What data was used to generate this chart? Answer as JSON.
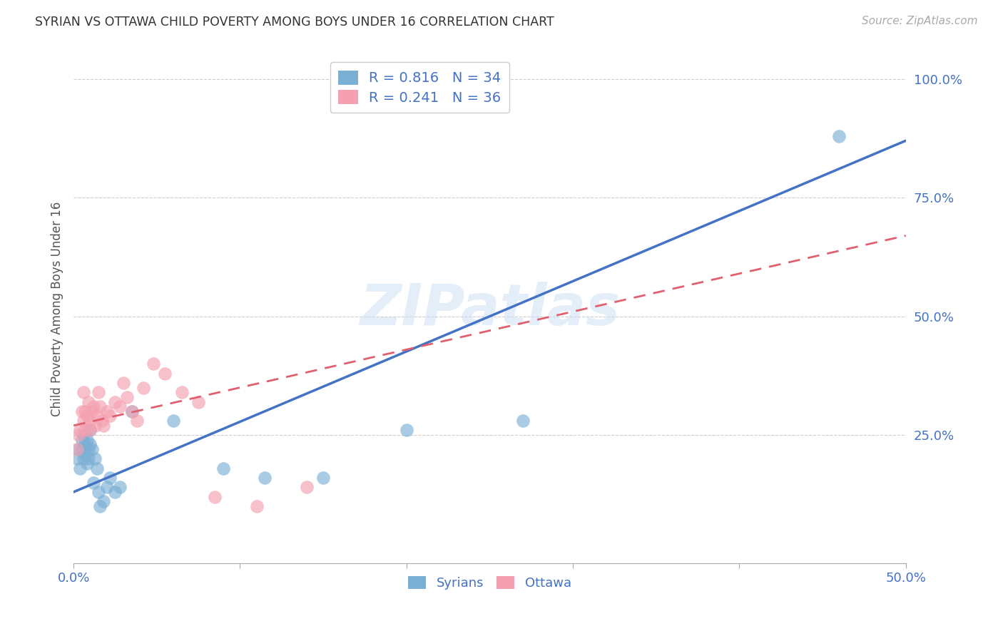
{
  "title": "SYRIAN VS OTTAWA CHILD POVERTY AMONG BOYS UNDER 16 CORRELATION CHART",
  "source": "Source: ZipAtlas.com",
  "ylabel": "Child Poverty Among Boys Under 16",
  "xlim": [
    0.0,
    0.5
  ],
  "ylim": [
    -0.02,
    1.05
  ],
  "xticks": [
    0.0,
    0.1,
    0.2,
    0.3,
    0.4,
    0.5
  ],
  "yticks": [
    0.25,
    0.5,
    0.75,
    1.0
  ],
  "ytick_labels": [
    "25.0%",
    "50.0%",
    "75.0%",
    "100.0%"
  ],
  "xtick_labels": [
    "0.0%",
    "",
    "",
    "",
    "",
    "50.0%"
  ],
  "grid_color": "#cccccc",
  "background_color": "#ffffff",
  "watermark": "ZIPatlas",
  "syrians_color": "#7bafd4",
  "ottawa_color": "#f4a0b0",
  "syrians_line_color": "#4472c4",
  "ottawa_line_color": "#e06070",
  "axis_label_color": "#4472c4",
  "title_color": "#333333",
  "syrians_x": [
    0.002,
    0.003,
    0.004,
    0.005,
    0.005,
    0.006,
    0.006,
    0.007,
    0.007,
    0.008,
    0.008,
    0.009,
    0.009,
    0.01,
    0.01,
    0.011,
    0.012,
    0.013,
    0.014,
    0.015,
    0.016,
    0.018,
    0.02,
    0.022,
    0.025,
    0.028,
    0.035,
    0.06,
    0.09,
    0.115,
    0.15,
    0.2,
    0.27,
    0.46
  ],
  "syrians_y": [
    0.2,
    0.22,
    0.18,
    0.22,
    0.24,
    0.2,
    0.25,
    0.21,
    0.23,
    0.19,
    0.24,
    0.22,
    0.2,
    0.23,
    0.26,
    0.22,
    0.15,
    0.2,
    0.18,
    0.13,
    0.1,
    0.11,
    0.14,
    0.16,
    0.13,
    0.14,
    0.3,
    0.28,
    0.18,
    0.16,
    0.16,
    0.26,
    0.28,
    0.88
  ],
  "ottawa_x": [
    0.002,
    0.003,
    0.004,
    0.005,
    0.006,
    0.006,
    0.007,
    0.007,
    0.008,
    0.009,
    0.01,
    0.01,
    0.011,
    0.012,
    0.013,
    0.014,
    0.015,
    0.016,
    0.017,
    0.018,
    0.02,
    0.022,
    0.025,
    0.028,
    0.03,
    0.032,
    0.035,
    0.038,
    0.042,
    0.048,
    0.055,
    0.065,
    0.075,
    0.085,
    0.11,
    0.14
  ],
  "ottawa_y": [
    0.22,
    0.25,
    0.26,
    0.3,
    0.28,
    0.34,
    0.26,
    0.3,
    0.29,
    0.32,
    0.26,
    0.28,
    0.3,
    0.31,
    0.27,
    0.29,
    0.34,
    0.31,
    0.28,
    0.27,
    0.3,
    0.29,
    0.32,
    0.31,
    0.36,
    0.33,
    0.3,
    0.28,
    0.35,
    0.4,
    0.38,
    0.34,
    0.32,
    0.12,
    0.1,
    0.14
  ]
}
